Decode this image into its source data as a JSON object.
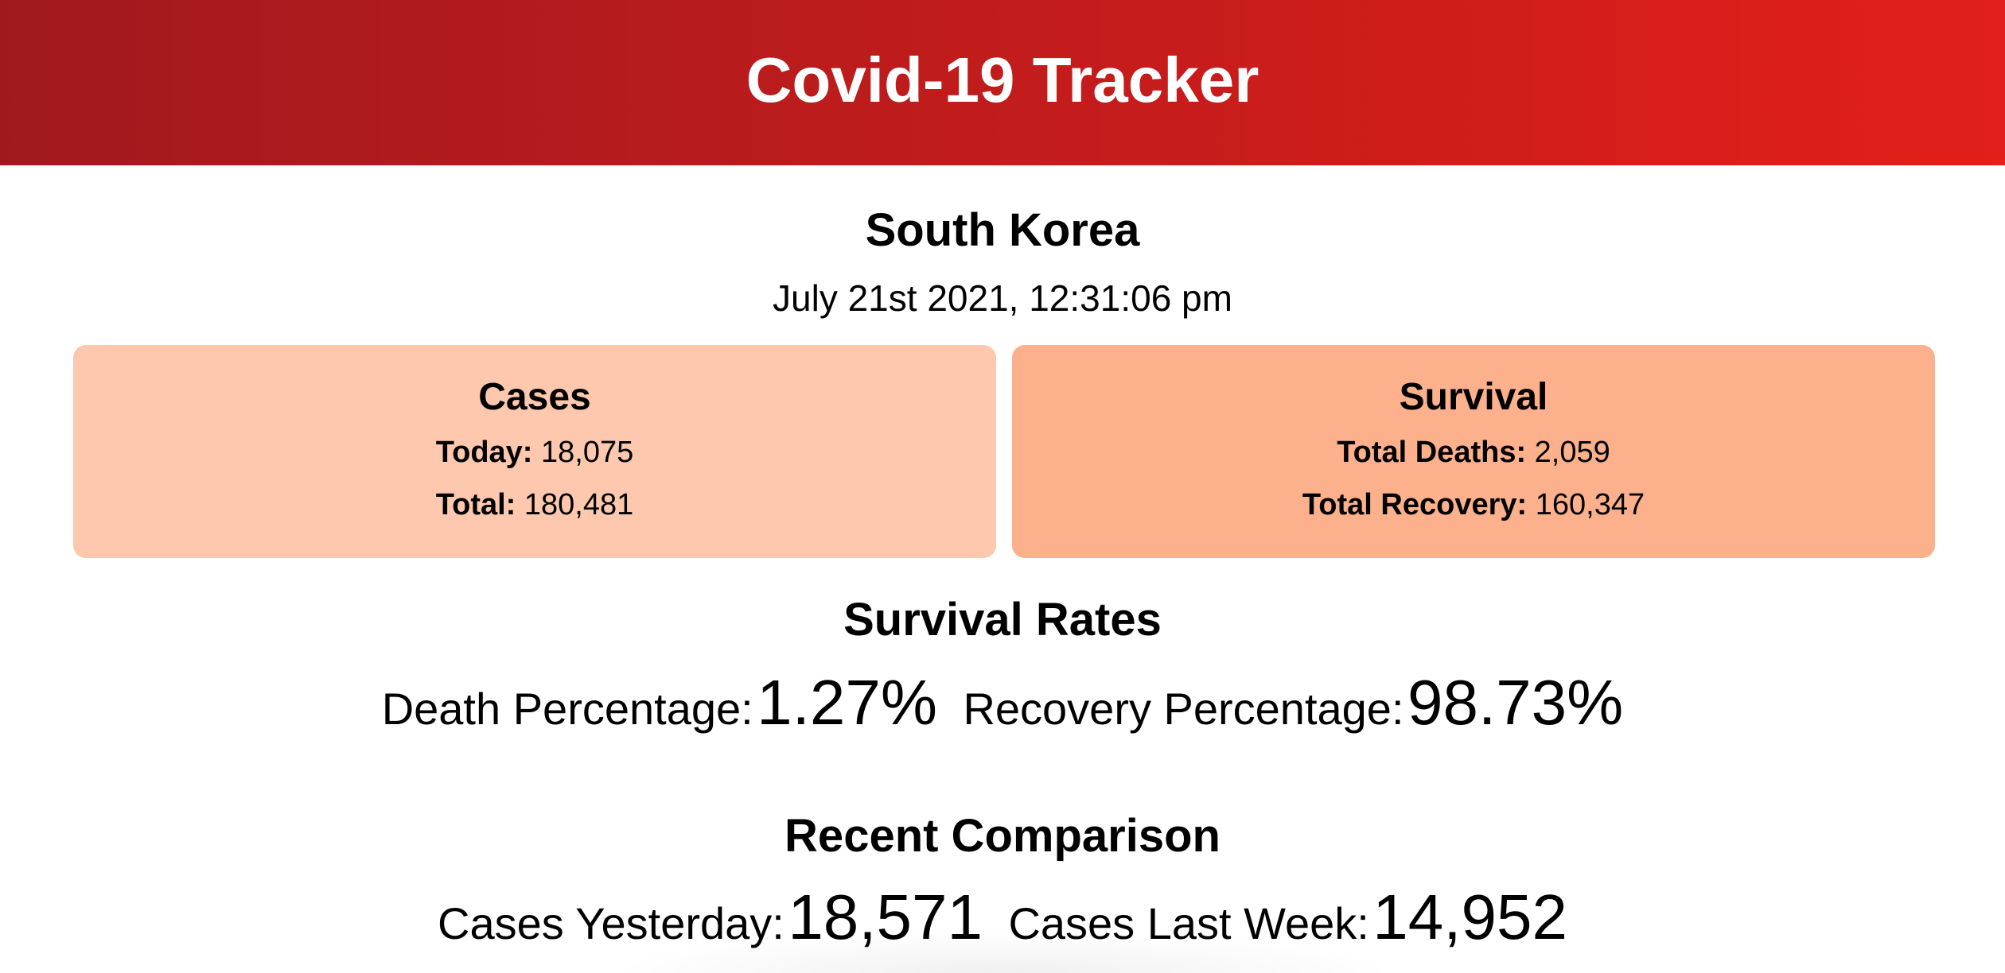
{
  "header": {
    "title": "Covid-19 Tracker",
    "gradient_start": "#a1191e",
    "gradient_end": "#e21f1a"
  },
  "location": {
    "country": "South Korea",
    "datetime": "July 21st 2021, 12:31:06 pm"
  },
  "cards": {
    "cases": {
      "title": "Cases",
      "today_label": "Today:",
      "today_value": "18,075",
      "total_label": "Total:",
      "total_value": "180,481",
      "color": "#fdc8ad"
    },
    "survival": {
      "title": "Survival",
      "deaths_label": "Total Deaths:",
      "deaths_value": "2,059",
      "recovery_label": "Total Recovery:",
      "recovery_value": "160,347",
      "color": "#fcb08b"
    }
  },
  "survival_rates": {
    "title": "Survival Rates",
    "death_label": "Death Percentage:",
    "death_value": "1.27%",
    "recovery_label": "Recovery Percentage:",
    "recovery_value": "98.73%"
  },
  "recent_comparison": {
    "title": "Recent Comparison",
    "yesterday_label": "Cases Yesterday:",
    "yesterday_value": "18,571",
    "last_week_label": "Cases Last Week:",
    "last_week_value": "14,952"
  }
}
